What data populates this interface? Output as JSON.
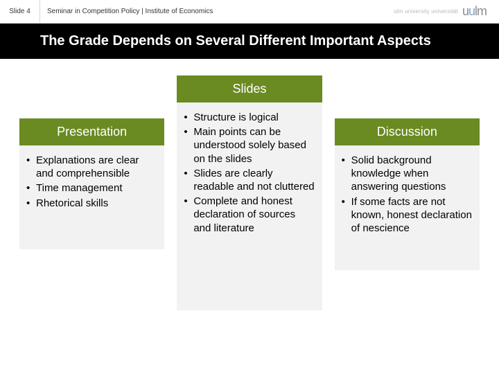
{
  "meta": {
    "slide_number_label": "Slide 4",
    "subtitle": "Seminar in Competition Policy | Institute of Economics",
    "logo_small_text": "ulm university universität",
    "logo_word": "uulm"
  },
  "title": "The Grade Depends on Several Different Important Aspects",
  "colors": {
    "header_bg": "#000000",
    "column_header_green": "#6a8a22",
    "column_body_bg": "#f2f2f2",
    "text": "#000000",
    "logo_grey": "#8b8b8b",
    "logo_accent": "#7ea3c4"
  },
  "columns": [
    {
      "key": "presentation",
      "header": "Presentation",
      "header_color": "#6a8a22",
      "items": [
        "Explanations are clear and comprehensible",
        "Time management",
        "Rhetorical skills"
      ]
    },
    {
      "key": "slides",
      "header": "Slides",
      "header_color": "#6a8a22",
      "items": [
        "Structure is logical",
        "Main points can be understood solely based on the slides",
        "Slides are clearly readable and not cluttered",
        "Complete and honest declaration of sources and literature"
      ]
    },
    {
      "key": "discussion",
      "header": "Discussion",
      "header_color": "#6a8a22",
      "items": [
        "Solid background knowledge when answering questions",
        "If some facts are not known, honest declaration of nescience"
      ]
    }
  ]
}
